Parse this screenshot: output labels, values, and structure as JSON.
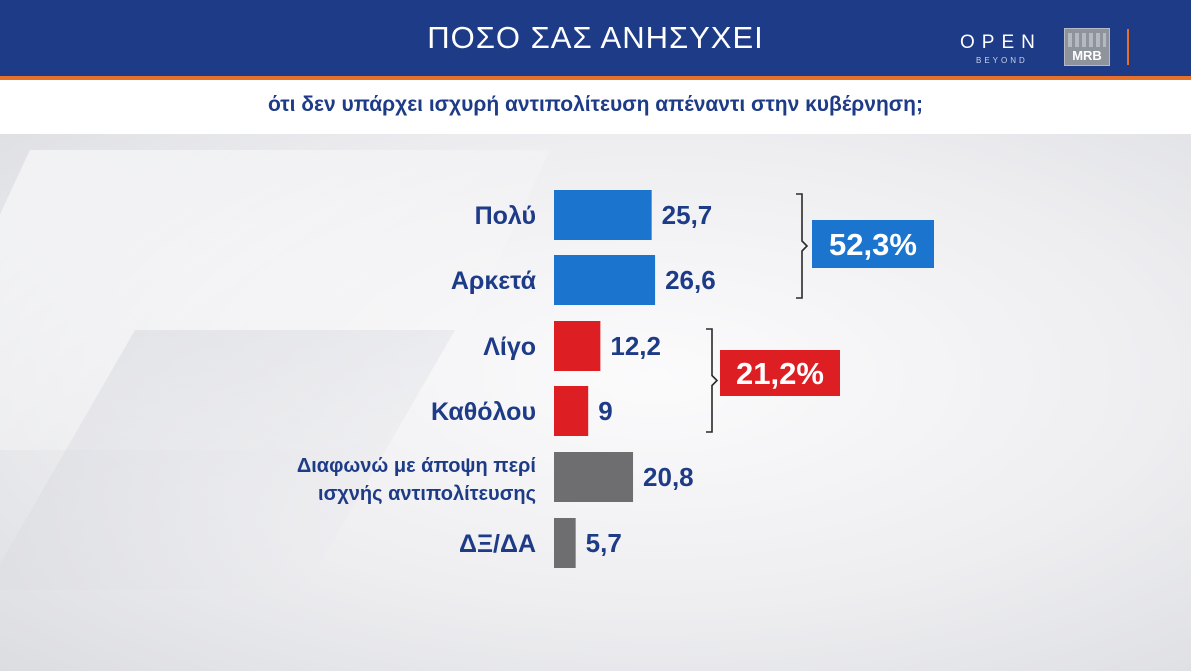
{
  "header": {
    "title": "ΠΟΣΟ ΣΑΣ ΑΝΗΣΥΧΕΙ",
    "subtitle": "ότι δεν υπάρχει ισχυρή αντιπολίτευση απέναντι στην κυβέρνηση;",
    "logo_open": "OPEN",
    "logo_beyond": "BEYOND",
    "logo_mrb": "MRB",
    "bar_color": "#1d3b86",
    "accent_color": "#e5702a"
  },
  "chart_data": {
    "type": "bar",
    "orientation": "horizontal",
    "title": "ΠΟΣΟ ΣΑΣ ΑΝΗΣΥΧΕΙ",
    "subtitle": "ότι δεν υπάρχει ισχυρή αντιπολίτευση απέναντι στην κυβέρνηση;",
    "categories": [
      [
        "Πολύ"
      ],
      [
        "Αρκετά"
      ],
      [
        "Λίγο"
      ],
      [
        "Καθόλου"
      ],
      [
        "Διαφωνώ με άποψη περί",
        "ισχνής αντιπολίτευσης"
      ],
      [
        "ΔΞ/ΔΑ"
      ]
    ],
    "values": [
      25.7,
      26.6,
      12.2,
      9,
      20.8,
      5.7
    ],
    "value_labels": [
      "25,7",
      "26,6",
      "12,2",
      "9",
      "20,8",
      "5,7"
    ],
    "bar_colors": [
      "#1b75cf",
      "#1b75cf",
      "#dd1e23",
      "#dd1e23",
      "#6e6e70",
      "#6e6e70"
    ],
    "groups": [
      {
        "rows": [
          0,
          1
        ],
        "total_label": "52,3%",
        "color": "#1b75cf"
      },
      {
        "rows": [
          2,
          3
        ],
        "total_label": "21,2%",
        "color": "#dd1e23"
      }
    ],
    "grid": false,
    "xlabel": "",
    "ylabel": ""
  }
}
